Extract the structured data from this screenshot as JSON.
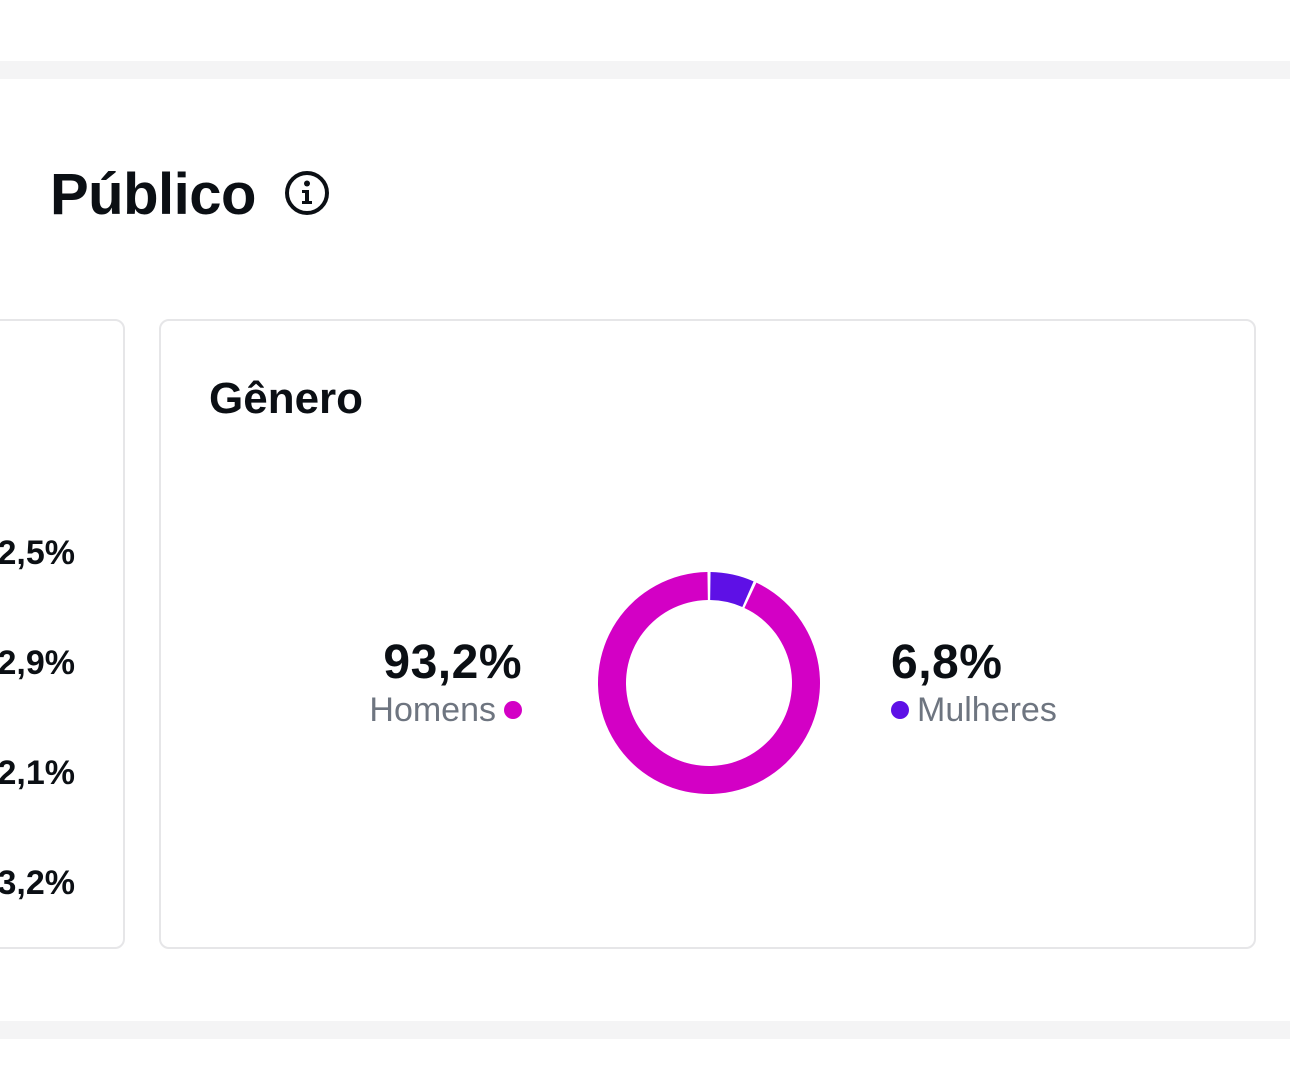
{
  "section": {
    "title": "Público",
    "info_icon": "info-circle-icon"
  },
  "left_card": {
    "values": [
      "2,5%",
      "2,9%",
      "2,1%",
      "3,2%"
    ]
  },
  "gender_card": {
    "title": "Gênero",
    "men": {
      "percent": "93,2%",
      "label": "Homens",
      "color": "#d300c5"
    },
    "women": {
      "percent": "6,8%",
      "label": "Mulheres",
      "color": "#5e10e6"
    }
  },
  "chart_data": {
    "type": "pie",
    "categories": [
      "Homens",
      "Mulheres"
    ],
    "values": [
      93.2,
      6.8
    ],
    "colors": [
      "#d300c5",
      "#5e10e6"
    ],
    "title": "Gênero"
  }
}
